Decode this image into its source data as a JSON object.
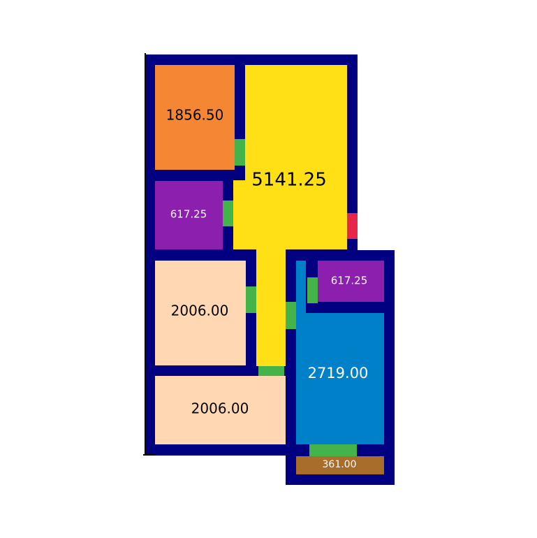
{
  "colors": {
    "wall": "#000080",
    "door": "#43b34a",
    "entrance_door": "#e8254a",
    "background": "#ffffff"
  },
  "rooms": [
    {
      "id": "r1",
      "label": "1856.50",
      "fill": "#f58634",
      "text_color": "#000000"
    },
    {
      "id": "r2",
      "label": "5141.25",
      "fill": "#ffdf15",
      "text_color": "#000000"
    },
    {
      "id": "r3",
      "label": "617.25",
      "fill": "#8c1fae",
      "text_color": "#ffffff"
    },
    {
      "id": "r4",
      "label": "2006.00",
      "fill": "#ffd8b3",
      "text_color": "#000000"
    },
    {
      "id": "r5",
      "label": "2006.00",
      "fill": "#ffd8b3",
      "text_color": "#000000"
    },
    {
      "id": "r6",
      "label": "617.25",
      "fill": "#8c1fae",
      "text_color": "#ffffff"
    },
    {
      "id": "r7",
      "label": "2719.00",
      "fill": "#0080c8",
      "text_color": "#ffffff"
    },
    {
      "id": "r8",
      "label": "361.00",
      "fill": "#a96d2b",
      "text_color": "#ffffff"
    }
  ]
}
